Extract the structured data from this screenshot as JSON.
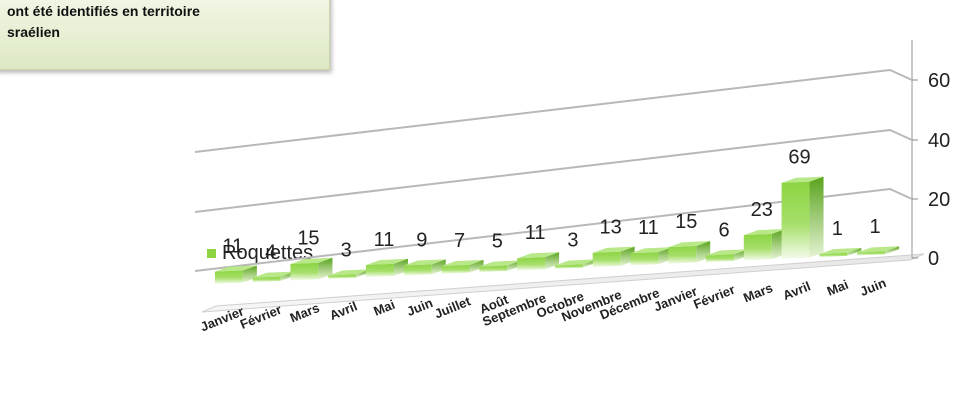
{
  "title_lines": [
    "ont été identifiés en territoire",
    "sraélien"
  ],
  "legend": {
    "label": "Roquettes"
  },
  "colors": {
    "bar": "#8cd442",
    "bar_dark": "#5aa31e",
    "bar_light": "#f4fbea",
    "gridline": "#b8b8b8"
  },
  "chart_data": {
    "type": "bar",
    "categories": [
      "Janvier",
      "Février",
      "Mars",
      "Avril",
      "Mai",
      "Juin",
      "Juillet",
      "Août",
      "Septembre",
      "Octobre",
      "Novembre",
      "Décembre",
      "Janvier",
      "Février",
      "Mars",
      "Avril",
      "Mai",
      "Juin"
    ],
    "series": [
      {
        "name": "Roquettes",
        "values": [
          11,
          4,
          15,
          3,
          11,
          9,
          7,
          5,
          11,
          3,
          13,
          11,
          15,
          6,
          23,
          69,
          1,
          1
        ]
      }
    ],
    "yticks": [
      0,
      20,
      40,
      60
    ],
    "ylim": [
      0,
      60
    ],
    "grid": true,
    "legend_position": "left"
  }
}
